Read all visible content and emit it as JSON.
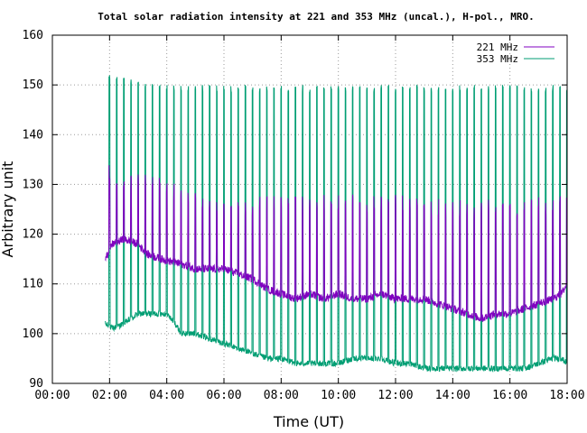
{
  "chart_data": {
    "type": "line",
    "title": "Total solar radiation intensity at 221 and 353 MHz (uncal.), H-pol., MRO.",
    "xlabel": "Time (UT)",
    "ylabel": "Arbitrary unit",
    "xlim": [
      0,
      18
    ],
    "ylim": [
      90,
      160
    ],
    "x_tick_labels": [
      "00:00",
      "02:00",
      "04:00",
      "06:00",
      "08:00",
      "10:00",
      "12:00",
      "14:00",
      "16:00",
      "18:00"
    ],
    "y_tick_labels": [
      "90",
      "100",
      "110",
      "120",
      "130",
      "140",
      "150",
      "160"
    ],
    "grid": true,
    "legend_position": "top-right",
    "x_unit": "hours UT",
    "series": [
      {
        "name": "221 MHz",
        "color": "#8000c0",
        "baseline": [
          [
            1.85,
            115
          ],
          [
            2.1,
            118
          ],
          [
            2.5,
            119
          ],
          [
            3.0,
            118
          ],
          [
            3.3,
            116
          ],
          [
            3.8,
            115
          ],
          [
            4.5,
            114
          ],
          [
            5.0,
            113
          ],
          [
            5.5,
            113
          ],
          [
            6.0,
            113
          ],
          [
            6.5,
            112
          ],
          [
            7.0,
            111
          ],
          [
            7.5,
            109
          ],
          [
            8.0,
            108
          ],
          [
            8.5,
            107
          ],
          [
            9.0,
            108
          ],
          [
            9.5,
            107
          ],
          [
            10.0,
            108
          ],
          [
            10.5,
            107
          ],
          [
            11.0,
            107
          ],
          [
            11.5,
            108
          ],
          [
            12.0,
            107
          ],
          [
            12.5,
            107
          ],
          [
            13.0,
            107
          ],
          [
            13.5,
            106
          ],
          [
            14.0,
            105
          ],
          [
            14.5,
            104
          ],
          [
            15.0,
            103
          ],
          [
            15.5,
            104
          ],
          [
            16.0,
            104
          ],
          [
            16.5,
            105
          ],
          [
            17.0,
            106
          ],
          [
            17.5,
            107
          ],
          [
            17.8,
            108
          ],
          [
            18.0,
            110
          ]
        ],
        "calibration_peaks": [
          [
            2.0,
            134
          ],
          [
            4.0,
            131
          ],
          [
            6.0,
            127
          ],
          [
            8.0,
            128
          ],
          [
            10.0,
            128
          ],
          [
            12.0,
            128
          ],
          [
            14.0,
            127
          ],
          [
            16.0,
            127
          ],
          [
            18.0,
            128
          ]
        ]
      },
      {
        "name": "353 MHz",
        "color": "#009e73",
        "baseline": [
          [
            1.85,
            102
          ],
          [
            2.1,
            101
          ],
          [
            2.5,
            102
          ],
          [
            3.0,
            104
          ],
          [
            3.5,
            104
          ],
          [
            4.0,
            104
          ],
          [
            4.3,
            102
          ],
          [
            4.5,
            100
          ],
          [
            5.0,
            100
          ],
          [
            5.5,
            99
          ],
          [
            6.0,
            98
          ],
          [
            6.5,
            97
          ],
          [
            7.0,
            96
          ],
          [
            7.5,
            95
          ],
          [
            8.0,
            95
          ],
          [
            8.5,
            94
          ],
          [
            9.0,
            94
          ],
          [
            9.5,
            94
          ],
          [
            10.0,
            94
          ],
          [
            10.5,
            95
          ],
          [
            11.0,
            95
          ],
          [
            11.5,
            95
          ],
          [
            12.0,
            94
          ],
          [
            12.5,
            94
          ],
          [
            13.0,
            93
          ],
          [
            13.5,
            93
          ],
          [
            14.0,
            93
          ],
          [
            14.5,
            93
          ],
          [
            15.0,
            93
          ],
          [
            15.5,
            93
          ],
          [
            16.0,
            93
          ],
          [
            16.5,
            93
          ],
          [
            17.0,
            94
          ],
          [
            17.5,
            95
          ],
          [
            17.8,
            95
          ],
          [
            18.0,
            94
          ]
        ],
        "calibration_peaks": [
          [
            2.0,
            152
          ],
          [
            4.0,
            150
          ],
          [
            6.0,
            150
          ],
          [
            8.0,
            150
          ],
          [
            10.0,
            150
          ],
          [
            12.0,
            150
          ],
          [
            14.0,
            150
          ],
          [
            16.0,
            150
          ],
          [
            18.0,
            150
          ]
        ]
      }
    ]
  }
}
